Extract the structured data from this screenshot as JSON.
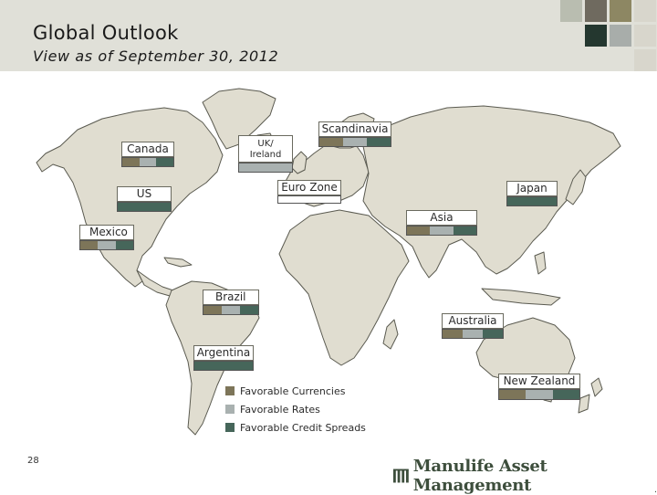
{
  "header": {
    "title": "Global Outlook",
    "subtitle": "View as of September 30, 2012",
    "swatches": [
      "#b9bdb0",
      "#6f6a5f",
      "#8d8763",
      "#d8d6cc",
      "#24372f",
      "#a8adaa",
      "#d8d6cc",
      "#d8d6cc"
    ]
  },
  "colors": {
    "favorable_currencies": "#7d7559",
    "favorable_rates": "#a9b1b0",
    "favorable_credit_spreads": "#46665a",
    "land": "#e0ddd0",
    "land_border": "#5a5a50"
  },
  "regions": [
    {
      "id": "canada",
      "label": "Canada",
      "indicators": [
        "currencies",
        "rates",
        "credit"
      ]
    },
    {
      "id": "uk",
      "label": "UK/\nIreland",
      "label_line1": "UK/",
      "label_line2": "Ireland",
      "indicators": [
        "rates"
      ]
    },
    {
      "id": "scandinavia",
      "label": "Scandinavia",
      "indicators": [
        "currencies",
        "rates",
        "credit"
      ]
    },
    {
      "id": "us",
      "label": "US",
      "indicators": [
        "credit"
      ]
    },
    {
      "id": "eurozone",
      "label": "Euro Zone",
      "indicators": []
    },
    {
      "id": "japan",
      "label": "Japan",
      "indicators": [
        "credit"
      ]
    },
    {
      "id": "asia",
      "label": "Asia",
      "indicators": [
        "currencies",
        "rates",
        "credit"
      ]
    },
    {
      "id": "mexico",
      "label": "Mexico",
      "indicators": [
        "currencies",
        "rates",
        "credit"
      ]
    },
    {
      "id": "brazil",
      "label": "Brazil",
      "indicators": [
        "currencies",
        "rates",
        "credit"
      ]
    },
    {
      "id": "australia",
      "label": "Australia",
      "indicators": [
        "currencies",
        "rates",
        "credit"
      ]
    },
    {
      "id": "argentina",
      "label": "Argentina",
      "indicators": [
        "credit"
      ]
    },
    {
      "id": "newzealand",
      "label": "New Zealand",
      "indicators": [
        "currencies",
        "rates",
        "credit"
      ]
    }
  ],
  "legend": [
    {
      "label": "Favorable Currencies",
      "color": "#7d7559"
    },
    {
      "label": "Favorable Rates",
      "color": "#a9b1b0"
    },
    {
      "label": "Favorable Credit Spreads",
      "color": "#46665a"
    }
  ],
  "footer": {
    "page_number": "28",
    "company": "Manulife Asset Management",
    "trademark": "."
  }
}
